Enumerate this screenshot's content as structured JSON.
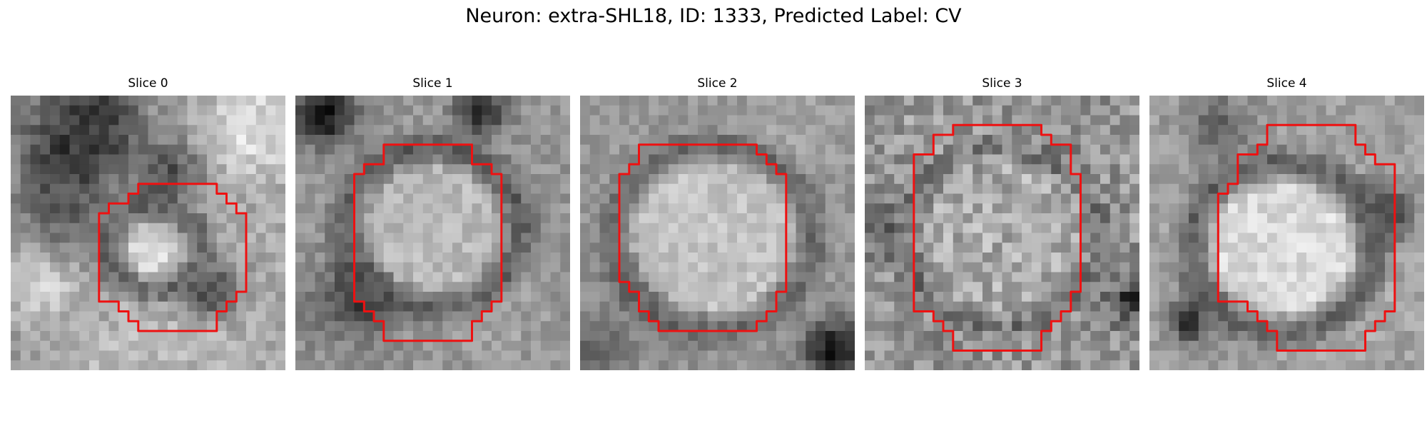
{
  "figure": {
    "title": "Neuron: extra-SHL18, ID: 1333, Predicted Label: CV"
  },
  "panels": [
    {
      "title": "Slice 0",
      "image": {
        "description": "grayscale neuron slice with a small bright cell body left of center and dark surrounding membrane",
        "contour_color": "#ee1111"
      }
    },
    {
      "title": "Slice 1",
      "image": {
        "description": "grayscale neuron slice with a larger bright round cell body surrounded by a dark ring",
        "contour_color": "#ee1111"
      }
    },
    {
      "title": "Slice 2",
      "image": {
        "description": "grayscale neuron slice with a large bright round cell body and a thin dark ring",
        "contour_color": "#ee1111"
      }
    },
    {
      "title": "Slice 3",
      "image": {
        "description": "grayscale noisy neuron slice with a faint round cell body",
        "contour_color": "#ee1111"
      }
    },
    {
      "title": "Slice 4",
      "image": {
        "description": "grayscale neuron slice with a bright round cell body slightly shifted left",
        "contour_color": "#ee1111"
      }
    }
  ],
  "colors": {
    "background": "#ffffff",
    "contour": "#ee1111",
    "text": "#000000"
  }
}
